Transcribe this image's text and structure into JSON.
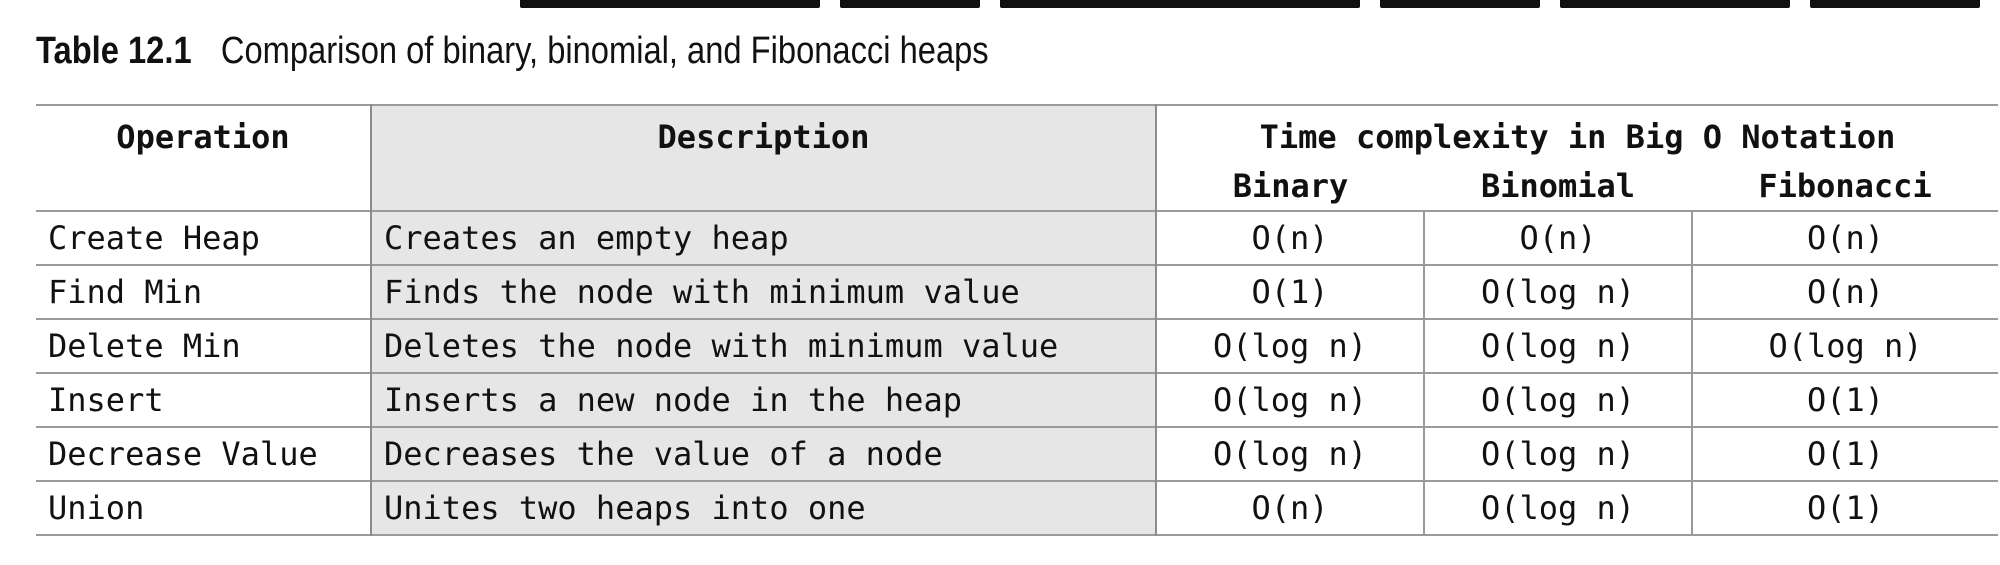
{
  "caption": {
    "label": "Table 12.1",
    "title": "Comparison of binary, binomial, and Fibonacci heaps"
  },
  "table": {
    "headers": {
      "operation": "Operation",
      "description": "Description",
      "time_group": "Time complexity in Big O Notation",
      "binary": "Binary",
      "binomial": "Binomial",
      "fibonacci": "Fibonacci"
    },
    "rows": [
      {
        "operation": "Create Heap",
        "description": "Creates an empty heap",
        "binary": "O(n)",
        "binomial": "O(n)",
        "fibonacci": "O(n)"
      },
      {
        "operation": "Find Min",
        "description": "Finds the node with minimum value",
        "binary": "O(1)",
        "binomial": "O(log n)",
        "fibonacci": "O(n)"
      },
      {
        "operation": "Delete Min",
        "description": "Deletes the node with minimum value",
        "binary": "O(log n)",
        "binomial": "O(log n)",
        "fibonacci": "O(log n)"
      },
      {
        "operation": "Insert",
        "description": "Inserts a new node in the heap",
        "binary": "O(log n)",
        "binomial": "O(log n)",
        "fibonacci": "O(1)"
      },
      {
        "operation": "Decrease Value",
        "description": "Decreases the value of a node",
        "binary": "O(log n)",
        "binomial": "O(log n)",
        "fibonacci": "O(1)"
      },
      {
        "operation": "Union",
        "description": "Unites two heaps into one",
        "binary": "O(n)",
        "binomial": "O(log n)",
        "fibonacci": "O(1)"
      }
    ]
  },
  "colors": {
    "description_column_bg": "#e6e6e6",
    "rule_lines": "#9a9a9a",
    "text": "#111111"
  }
}
